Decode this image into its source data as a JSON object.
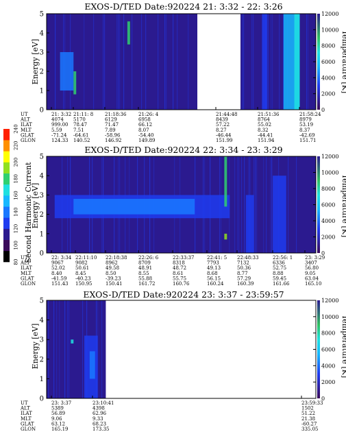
{
  "chart_data": [
    {
      "type": "heatmap",
      "title": "EXOS-D/TED   Date:920224  21: 3:32 - 22: 3:26",
      "ylabel": "Energy [eV]",
      "y2label": "Temperature [K]",
      "ylim": [
        0,
        5
      ],
      "y_ticks": [
        "0",
        "1",
        "2",
        "3",
        "4",
        "5"
      ],
      "y2lim": [
        0,
        12000
      ],
      "y2_ticks": [
        "0",
        "2000",
        "4000",
        "6000",
        "8000",
        "10000",
        "12000"
      ],
      "segments": [
        {
          "from": 0.0,
          "to": 0.56,
          "base": 2
        },
        {
          "from": 0.72,
          "to": 1.0,
          "base": 2
        }
      ],
      "gaps": [
        [
          0.56,
          0.72
        ]
      ],
      "features": [
        {
          "x": 0.05,
          "w": 0.05,
          "y0": 1.0,
          "y1": 3.0,
          "level": 4
        },
        {
          "x": 0.3,
          "w": 0.01,
          "y0": 3.4,
          "y1": 4.6,
          "level": 7
        },
        {
          "x": 0.1,
          "w": 0.01,
          "y0": 0.8,
          "y1": 2.0,
          "level": 7
        },
        {
          "x": 0.88,
          "w": 0.06,
          "y0": 0.0,
          "y1": 5.0,
          "level": 5
        },
        {
          "x": 0.92,
          "w": 0.02,
          "y0": 0.0,
          "y1": 5.0,
          "level": 6
        },
        {
          "x": 0.8,
          "w": 0.02,
          "y0": 0.0,
          "y1": 5.0,
          "level": 3
        }
      ],
      "ephemeris": {
        "labels": [
          "UT",
          "ALT",
          "ILAT",
          "MLT",
          "GLAT",
          "GLON"
        ],
        "columns": [
          {
            "values": [
              "21: 3:32",
              "4074",
              "999.00",
              "5.59",
              "-71.24",
              "124.33"
            ]
          },
          {
            "values": [
              "21:11: 8",
              "5170",
              "78.47",
              "7.51",
              "-64.61",
              "140.52"
            ]
          },
          {
            "values": [
              "21:18:36",
              "6129",
              "71.47",
              "7.89",
              "-58.96",
              "146.92"
            ]
          },
          {
            "values": [
              "21:26: 4",
              "6958",
              "66.12",
              "8.07",
              "-54.40",
              "149.89"
            ]
          },
          {
            "values": [
              "21:44:48",
              "8439",
              "57.22",
              "8.27",
              "-46.44",
              "151.99"
            ]
          },
          {
            "values": [
              "21:51:36",
              "8764",
              "55.02",
              "8.32",
              "-44.41",
              "151.94"
            ]
          },
          {
            "values": [
              "21:58:24",
              "8979",
              "53.19",
              "8.37",
              "-42.69",
              "151.71"
            ]
          }
        ]
      }
    },
    {
      "type": "heatmap",
      "title": "EXOS-D/TED   Date:920224  22: 3:34 - 23: 3:29",
      "ylabel": "Energy [eV]",
      "y2label": "Temperature [K]",
      "ylim": [
        0,
        5
      ],
      "y_ticks": [
        "0",
        "1",
        "2",
        "3",
        "4",
        "5"
      ],
      "y2lim": [
        0,
        12000
      ],
      "y2_ticks": [
        "0",
        "2000",
        "4000",
        "6000",
        "8000",
        "10000",
        "12000"
      ],
      "segments": [
        {
          "from": 0.0,
          "to": 1.0,
          "base": 2
        }
      ],
      "gaps": [],
      "features": [
        {
          "x": 0.03,
          "w": 0.65,
          "y0": 1.8,
          "y1": 3.0,
          "level": 3
        },
        {
          "x": 0.1,
          "w": 0.45,
          "y0": 2.0,
          "y1": 2.8,
          "level": 4
        },
        {
          "x": 0.66,
          "w": 0.01,
          "y0": 2.4,
          "y1": 5.0,
          "level": 7
        },
        {
          "x": 0.66,
          "w": 0.01,
          "y0": 0.7,
          "y1": 1.0,
          "level": 8
        },
        {
          "x": 0.84,
          "w": 0.05,
          "y0": 0.0,
          "y1": 4.0,
          "level": 3
        },
        {
          "x": 0.74,
          "w": 0.03,
          "y0": 0.0,
          "y1": 3.0,
          "level": 3
        }
      ],
      "ephemeris": {
        "labels": [
          "UT",
          "ALT",
          "ILAT",
          "MLT",
          "GLAT",
          "GLON"
        ],
        "columns": [
          {
            "values": [
              "22: 3:34",
              "9067",
              "52.02",
              "8.40",
              "-41.59",
              "151.43"
            ]
          },
          {
            "values": [
              "22:11:10",
              "9082",
              "50.61",
              "8.45",
              "-40.23",
              "150.95"
            ]
          },
          {
            "values": [
              "22:18:38",
              "8962",
              "49.58",
              "8.50",
              "-39.23",
              "150.41"
            ]
          },
          {
            "values": [
              "22:26: 6",
              "8709",
              "48.91",
              "8.55",
              "55.88",
              "161.72"
            ]
          },
          {
            "values": [
              "22:33:37",
              "8318",
              "48.72",
              "8.61",
              "55.75",
              "160.76"
            ]
          },
          {
            "values": [
              "22:41: 5",
              "7793",
              "49.13",
              "8.68",
              "56.15",
              "160.24"
            ]
          },
          {
            "values": [
              "22:48:33",
              "7132",
              "50.36",
              "8.77",
              "57.29",
              "160.39"
            ]
          },
          {
            "values": [
              "22:56: 1",
              "6336",
              "52.75",
              "8.88",
              "59.45",
              "161.66"
            ]
          },
          {
            "values": [
              "23: 3:29",
              "3407",
              "56.80",
              "9.05",
              "63.04",
              "165.10"
            ]
          }
        ]
      }
    },
    {
      "type": "heatmap",
      "title": "EXOS-D/TED   Date:920224  23: 3:37 - 23:59:57",
      "ylabel": "Energy [eV]",
      "y2label": "Temperature [K]",
      "ylim": [
        0,
        5
      ],
      "y_ticks": [
        "0",
        "1",
        "2",
        "3",
        "4",
        "5"
      ],
      "y2lim": [
        0,
        12000
      ],
      "y2_ticks": [
        "0",
        "2000",
        "4000",
        "6000",
        "8000",
        "10000",
        "12000"
      ],
      "segments": [
        {
          "from": 0.0,
          "to": 0.22,
          "base": 2
        }
      ],
      "gaps": [
        [
          0.22,
          1.0
        ]
      ],
      "features": [
        {
          "x": 0.14,
          "w": 0.05,
          "y0": 0.0,
          "y1": 3.2,
          "level": 3
        },
        {
          "x": 0.16,
          "w": 0.02,
          "y0": 1.0,
          "y1": 2.4,
          "level": 4
        },
        {
          "x": 0.09,
          "w": 0.01,
          "y0": 2.8,
          "y1": 3.0,
          "level": 6
        }
      ],
      "ephemeris": {
        "labels": [
          "UT",
          "ALT",
          "ILAT",
          "MLT",
          "GLAT",
          "GLON"
        ],
        "columns": [
          {
            "values": [
              "23: 3:37",
              "5389",
              "56.89",
              "9.06",
              "63.12",
              "165.19"
            ]
          },
          {
            "values": [
              "23:10:41",
              "4398",
              "62.96",
              "9.33",
              "68.23",
              "173.35"
            ]
          },
          {
            "values": [
              "23:59:33",
              "1502",
              "51.22",
              "21.38",
              "-60.27",
              "335.05"
            ]
          }
        ]
      }
    }
  ],
  "colorbar": {
    "label": "Second Harmonic Current",
    "ticks": [
      "80",
      "100",
      "120",
      "140",
      "160",
      "180",
      "200",
      "220",
      "240"
    ],
    "colors": [
      "#000000",
      "#3a0a5a",
      "#2b1a8f",
      "#1f3cf0",
      "#1a78ff",
      "#18b8ff",
      "#20e0e0",
      "#30d070",
      "#90e020",
      "#ffff00",
      "#ff9000",
      "#ff2000"
    ]
  }
}
